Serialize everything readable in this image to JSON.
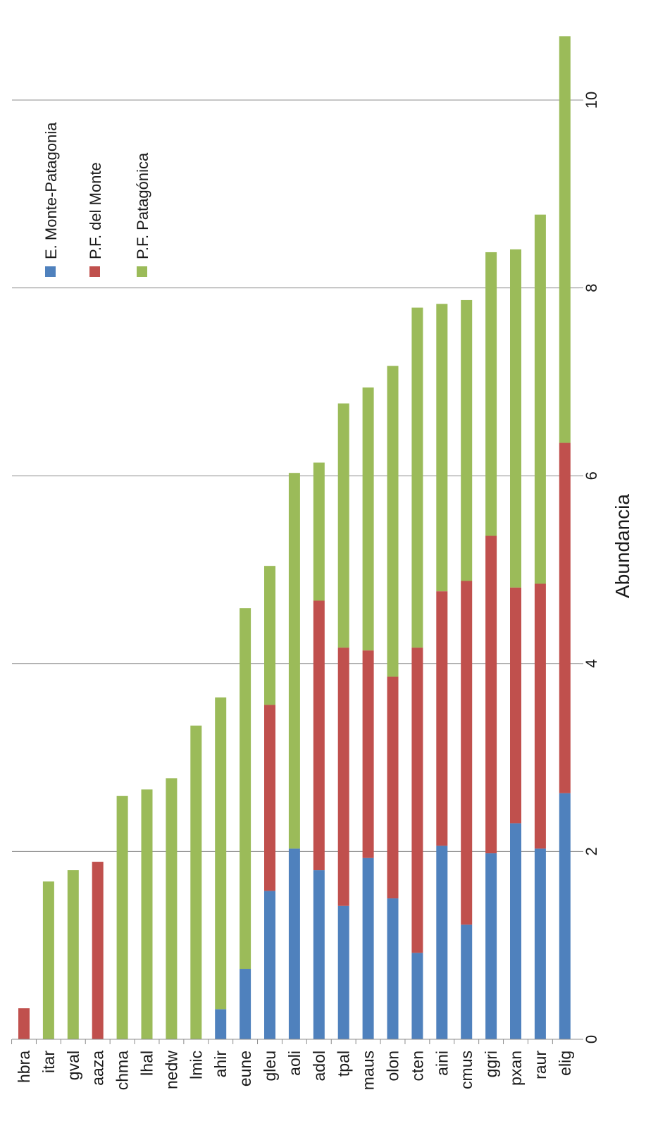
{
  "chart_data": {
    "type": "bar",
    "orientation": "horizontal",
    "stacked": true,
    "categories": [
      "hbra",
      "itar",
      "gval",
      "aaza",
      "chma",
      "lhal",
      "nedw",
      "lmic",
      "ahir",
      "eune",
      "gleu",
      "aoli",
      "adol",
      "tpal",
      "maus",
      "olon",
      "cten",
      "aini",
      "cmus",
      "ggri",
      "pxan",
      "raur",
      "elig"
    ],
    "series": [
      {
        "name": "E. Monte-Patagonia",
        "color": "#4f81bd",
        "values": [
          0,
          0,
          0,
          0,
          0,
          0,
          0,
          0,
          0.32,
          0.75,
          1.58,
          2.03,
          1.8,
          1.42,
          1.93,
          1.5,
          0.92,
          2.06,
          1.22,
          1.98,
          2.3,
          2.03,
          2.62
        ]
      },
      {
        "name": "P.F. del Monte",
        "color": "#c0504d",
        "values": [
          0.33,
          0,
          0,
          1.89,
          0,
          0,
          0,
          0,
          0,
          0,
          1.98,
          0,
          2.87,
          2.75,
          2.21,
          2.36,
          3.25,
          2.71,
          3.66,
          3.38,
          2.51,
          2.82,
          3.73
        ]
      },
      {
        "name": "P.F. Patagónica",
        "color": "#9bbb59",
        "values": [
          0,
          1.68,
          1.8,
          0,
          2.59,
          2.66,
          2.78,
          3.34,
          3.32,
          3.84,
          1.48,
          4.0,
          1.47,
          2.6,
          2.8,
          3.31,
          3.62,
          3.06,
          2.99,
          3.02,
          3.6,
          3.93,
          4.33
        ]
      }
    ],
    "xlabel": "Abundancia",
    "ylabel": "",
    "xlim": [
      0,
      10.8
    ],
    "x_ticks": [
      "0",
      "2",
      "4",
      "6",
      "8",
      "10"
    ],
    "grid": true,
    "legend_position": "top-right",
    "rotation": "rotated 90 degrees clockwise"
  }
}
